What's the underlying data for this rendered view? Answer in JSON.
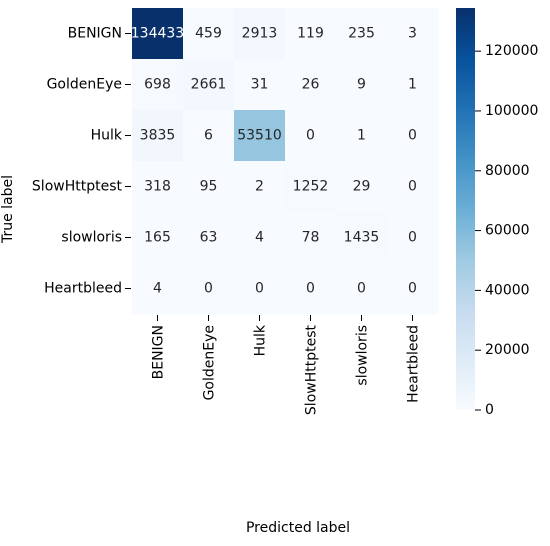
{
  "chart_data": {
    "type": "heatmap",
    "title": "",
    "xlabel": "Predicted label",
    "ylabel": "True label",
    "x_categories": [
      "BENIGN",
      "GoldenEye",
      "Hulk",
      "SlowHttptest",
      "slowloris",
      "Heartbleed"
    ],
    "y_categories": [
      "BENIGN",
      "GoldenEye",
      "Hulk",
      "SlowHttptest",
      "slowloris",
      "Heartbleed"
    ],
    "values": [
      [
        134433,
        459,
        2913,
        119,
        235,
        3
      ],
      [
        698,
        2661,
        31,
        26,
        9,
        1
      ],
      [
        3835,
        6,
        53510,
        0,
        1,
        0
      ],
      [
        318,
        95,
        2,
        1252,
        29,
        0
      ],
      [
        165,
        63,
        4,
        78,
        1435,
        0
      ],
      [
        4,
        0,
        0,
        0,
        0,
        0
      ]
    ],
    "value_labels": [
      [
        "134433",
        "459",
        "2913",
        "119",
        "235",
        "3"
      ],
      [
        "698",
        "2661",
        "31",
        "26",
        "9",
        "1"
      ],
      [
        "3835",
        "6",
        "53510",
        "0",
        "1",
        "0"
      ],
      [
        "318",
        "95",
        "2",
        "1252",
        "29",
        "0"
      ],
      [
        "165",
        "63",
        "4",
        "78",
        "1435",
        "0"
      ],
      [
        "4",
        "0",
        "0",
        "0",
        "0",
        "0"
      ]
    ],
    "colorbar": {
      "colormap": "Blues",
      "range": [
        0,
        134433
      ],
      "ticks": [
        0,
        20000,
        40000,
        60000,
        80000,
        100000,
        120000
      ],
      "tick_labels": [
        "0",
        "20000",
        "40000",
        "60000",
        "80000",
        "100000",
        "120000"
      ],
      "position": "right"
    },
    "grid": false
  }
}
